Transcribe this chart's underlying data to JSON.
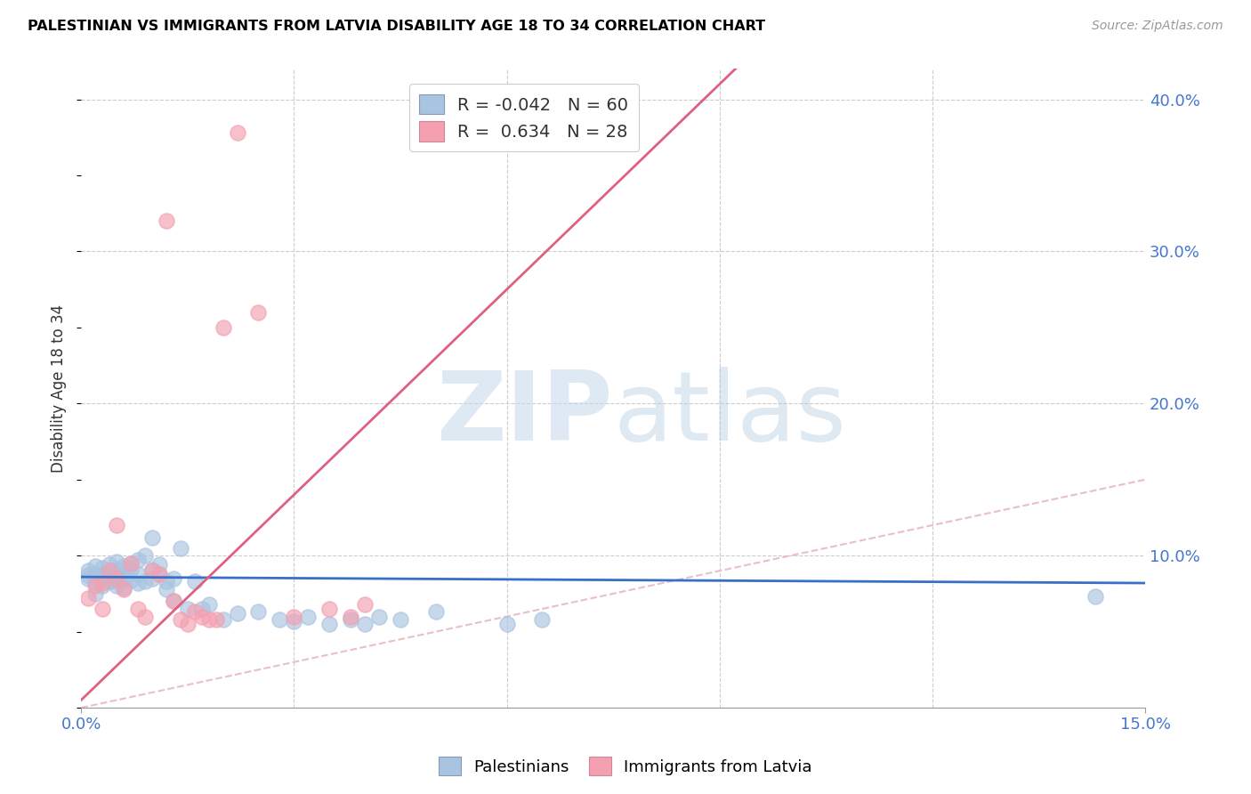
{
  "title": "PALESTINIAN VS IMMIGRANTS FROM LATVIA DISABILITY AGE 18 TO 34 CORRELATION CHART",
  "source": "Source: ZipAtlas.com",
  "ylabel": "Disability Age 18 to 34",
  "xlim": [
    0.0,
    0.15
  ],
  "ylim": [
    0.0,
    0.42
  ],
  "yticks_right": [
    0.0,
    0.1,
    0.2,
    0.3,
    0.4
  ],
  "legend_blue_r": "-0.042",
  "legend_blue_n": "60",
  "legend_pink_r": "0.634",
  "legend_pink_n": "28",
  "blue_color": "#a8c4e0",
  "pink_color": "#f4a0b0",
  "blue_line_color": "#3870c8",
  "pink_line_color": "#e06080",
  "diagonal_color": "#e8b8c0",
  "palestinians_x": [
    0.001,
    0.001,
    0.001,
    0.002,
    0.002,
    0.002,
    0.002,
    0.003,
    0.003,
    0.003,
    0.003,
    0.004,
    0.004,
    0.004,
    0.004,
    0.005,
    0.005,
    0.005,
    0.005,
    0.006,
    0.006,
    0.006,
    0.006,
    0.007,
    0.007,
    0.007,
    0.008,
    0.008,
    0.008,
    0.009,
    0.009,
    0.01,
    0.01,
    0.01,
    0.011,
    0.011,
    0.012,
    0.012,
    0.013,
    0.013,
    0.014,
    0.015,
    0.016,
    0.017,
    0.018,
    0.02,
    0.022,
    0.025,
    0.028,
    0.03,
    0.032,
    0.035,
    0.038,
    0.04,
    0.042,
    0.045,
    0.05,
    0.06,
    0.065,
    0.143
  ],
  "palestinians_y": [
    0.087,
    0.09,
    0.085,
    0.082,
    0.088,
    0.075,
    0.093,
    0.08,
    0.086,
    0.088,
    0.092,
    0.083,
    0.087,
    0.094,
    0.09,
    0.08,
    0.091,
    0.096,
    0.083,
    0.079,
    0.088,
    0.093,
    0.085,
    0.091,
    0.084,
    0.095,
    0.088,
    0.097,
    0.082,
    0.1,
    0.083,
    0.112,
    0.085,
    0.091,
    0.088,
    0.094,
    0.078,
    0.083,
    0.085,
    0.07,
    0.105,
    0.065,
    0.083,
    0.065,
    0.068,
    0.058,
    0.062,
    0.063,
    0.058,
    0.057,
    0.06,
    0.055,
    0.058,
    0.055,
    0.06,
    0.058,
    0.063,
    0.055,
    0.058,
    0.073
  ],
  "latvia_x": [
    0.001,
    0.002,
    0.003,
    0.003,
    0.004,
    0.005,
    0.005,
    0.006,
    0.007,
    0.008,
    0.009,
    0.01,
    0.011,
    0.012,
    0.013,
    0.014,
    0.015,
    0.016,
    0.017,
    0.018,
    0.019,
    0.02,
    0.022,
    0.025,
    0.03,
    0.035,
    0.038,
    0.04
  ],
  "latvia_y": [
    0.072,
    0.08,
    0.065,
    0.082,
    0.09,
    0.12,
    0.085,
    0.078,
    0.095,
    0.065,
    0.06,
    0.09,
    0.088,
    0.32,
    0.07,
    0.058,
    0.055,
    0.063,
    0.06,
    0.058,
    0.058,
    0.25,
    0.378,
    0.26,
    0.06,
    0.065,
    0.06,
    0.068
  ]
}
